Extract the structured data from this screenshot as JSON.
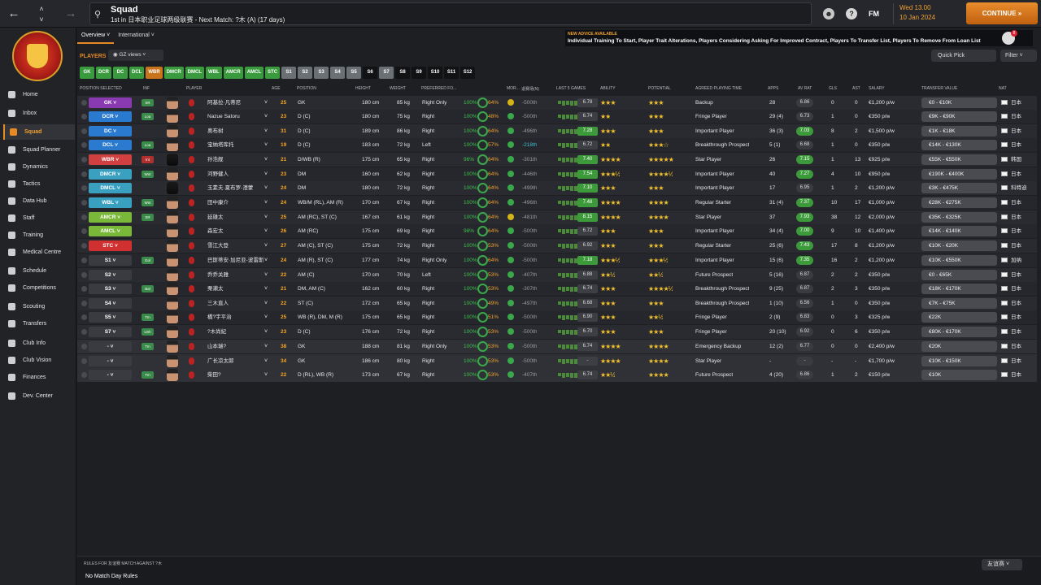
{
  "topbar": {
    "title": "Squad",
    "subtitle": "1st in 日本职业足球两级联赛 - Next Match: ?木 (A) (17 days)",
    "fm": "FM",
    "date_line1": "Wed 13.00",
    "date_line2": "10 Jan 2024",
    "continue": "CONTINUE"
  },
  "sidebar": [
    {
      "label": "Home"
    },
    {
      "label": "Inbox"
    },
    {
      "label": "Squad"
    },
    {
      "label": "Squad Planner"
    },
    {
      "label": "Dynamics"
    },
    {
      "label": "Tactics"
    },
    {
      "label": "Data Hub"
    },
    {
      "label": "Staff"
    },
    {
      "label": "Training"
    },
    {
      "label": "Medical Centre"
    },
    {
      "label": "Schedule"
    },
    {
      "label": "Competitions"
    },
    {
      "label": "Scouting"
    },
    {
      "label": "Transfers"
    },
    {
      "label": "Club Info"
    },
    {
      "label": "Club Vision"
    },
    {
      "label": "Finances"
    },
    {
      "label": "Dev. Center"
    }
  ],
  "tabs": [
    "Overview",
    "International"
  ],
  "advice": {
    "heading": "NEW ADVICE AVAILABLE",
    "text": "Individual Training To Start, Player Trait Alterations, Players Considering Asking For Improved Contract, Players To Transfer List, Players To Remove From Loan List",
    "count": "8"
  },
  "players_label": "PLAYERS",
  "views": "GZ views",
  "quick_pick": "Quick Pick",
  "filter": "Filter",
  "position_bar": [
    {
      "label": "GK",
      "color": "#3a9a3e"
    },
    {
      "label": "DCR",
      "color": "#3a9a3e"
    },
    {
      "label": "DC",
      "color": "#3a9a3e"
    },
    {
      "label": "DCL",
      "color": "#3a9a3e"
    },
    {
      "label": "WBR",
      "color": "#c8741c"
    },
    {
      "label": "DMCR",
      "color": "#3a9a3e"
    },
    {
      "label": "DMCL",
      "color": "#3a9a3e"
    },
    {
      "label": "WBL",
      "color": "#3a9a3e"
    },
    {
      "label": "AMCR",
      "color": "#3a9a3e"
    },
    {
      "label": "AMCL",
      "color": "#3a9a3e"
    },
    {
      "label": "STC",
      "color": "#3a9a3e"
    },
    {
      "label": "S1",
      "color": "#6b7075"
    },
    {
      "label": "S2",
      "color": "#6b7075"
    },
    {
      "label": "S3",
      "color": "#6b7075"
    },
    {
      "label": "S4",
      "color": "#6b7075"
    },
    {
      "label": "S5",
      "color": "#6b7075"
    },
    {
      "label": "S6",
      "color": "#111214"
    },
    {
      "label": "S7",
      "color": "#6b7075"
    },
    {
      "label": "S8",
      "color": "#111214"
    },
    {
      "label": "S9",
      "color": "#111214"
    },
    {
      "label": "S10",
      "color": "#111214"
    },
    {
      "label": "S11",
      "color": "#111214"
    },
    {
      "label": "S12",
      "color": "#111214"
    }
  ],
  "columns": {
    "pos_sel": "POSITION SELECTED",
    "inf": "INF",
    "player": "PLAYER",
    "age": "AGE",
    "position": "POSITION",
    "height": "HEIGHT",
    "weight": "WEIGHT",
    "pref_foot": "PREFERRED FO...",
    "mor": "MOR...",
    "cond": "退赛场(N)",
    "last5": "LAST 5 GAMES",
    "ability": "ABILITY",
    "potential": "POTENTIAL",
    "playing_time": "AGREED PLAYING TIME",
    "apps": "APPS",
    "av_rat": "AV RAT",
    "gls": "GLS",
    "ast": "AST",
    "salary": "SALARY",
    "tv": "TRANSFER VALUE",
    "nat": "NAT"
  },
  "players": [
    {
      "sel": "GK",
      "sel_color": "#8a3ab0",
      "inf": "SR",
      "inf_color": "#3a8a4a",
      "name": "阿基拉·凡蒂尼",
      "age": "25",
      "position": "GK",
      "height": "180 cm",
      "weight": "85 kg",
      "foot": "Right Only",
      "fit": "100%",
      "sharp": "64%",
      "mor": "y",
      "cond": "-500th",
      "rating": "6.78",
      "rating_g": false,
      "ability": "★★★",
      "potential": "★★★",
      "time": "Backup",
      "apps": "28",
      "avr": "6.86",
      "avr_g": false,
      "gls": "0",
      "ast": "0",
      "salary": "€1,200 p/w",
      "tv": "€0 - €10K",
      "nat": "日本"
    },
    {
      "sel": "DCR",
      "sel_color": "#2a7ad0",
      "inf": "Loa",
      "inf_color": "#3a8a4a",
      "name": "Nazue Satoru",
      "age": "23",
      "position": "D (C)",
      "height": "180 cm",
      "weight": "75 kg",
      "foot": "Right",
      "fit": "100%",
      "sharp": "48%",
      "mor": "g",
      "cond": "-500th",
      "rating": "6.74",
      "rating_g": false,
      "ability": "★★",
      "potential": "★★★",
      "time": "Fringe Player",
      "apps": "29 (4)",
      "avr": "6.73",
      "avr_g": false,
      "gls": "1",
      "ast": "0",
      "salary": "€350 p/w",
      "tv": "€9K - €90K",
      "nat": "日本"
    },
    {
      "sel": "DC",
      "sel_color": "#2a7ad0",
      "inf": "",
      "inf_color": "",
      "name": "奥布树",
      "age": "31",
      "position": "D (C)",
      "height": "189 cm",
      "weight": "86 kg",
      "foot": "Right",
      "fit": "100%",
      "sharp": "64%",
      "mor": "g",
      "cond": "-496th",
      "rating": "7.28",
      "rating_g": true,
      "ability": "★★★",
      "potential": "★★★",
      "time": "Important Player",
      "apps": "36 (3)",
      "avr": "7.03",
      "avr_g": true,
      "gls": "8",
      "ast": "2",
      "salary": "€1,500 p/w",
      "tv": "€1K - €18K",
      "nat": "日本"
    },
    {
      "sel": "DCL",
      "sel_color": "#2a7ad0",
      "inf": "Loa",
      "inf_color": "#3a8a4a",
      "name": "宝纳塔库托",
      "age": "19",
      "position": "D (C)",
      "height": "183 cm",
      "weight": "72 kg",
      "foot": "Left",
      "fit": "100%",
      "sharp": "57%",
      "mor": "g",
      "cond": "-218th",
      "rating": "6.72",
      "rating_g": false,
      "ability": "★★",
      "potential": "★★★☆",
      "time": "Breakthrough Prospect",
      "apps": "5 (1)",
      "avr": "6.68",
      "avr_g": false,
      "gls": "1",
      "ast": "0",
      "salary": "€350 p/w",
      "tv": "€14K - €130K",
      "nat": "日本"
    },
    {
      "sel": "WBR",
      "sel_color": "#d04040",
      "inf": "Int",
      "inf_color": "#b03030",
      "name": "孙浩舰",
      "age": "21",
      "position": "D/WB (R)",
      "height": "175 cm",
      "weight": "65 kg",
      "foot": "Right",
      "fit": "96%",
      "sharp": "64%",
      "mor": "g",
      "cond": "-301th",
      "rating": "7.40",
      "rating_g": true,
      "ability": "★★★★",
      "potential": "★★★★★",
      "time": "Star Player",
      "apps": "26",
      "avr": "7.15",
      "avr_g": true,
      "gls": "1",
      "ast": "13",
      "salary": "€925 p/w",
      "tv": "€55K - €550K",
      "nat": "韩国"
    },
    {
      "sel": "DMCR",
      "sel_color": "#3aa0c0",
      "inf": "Wnt",
      "inf_color": "#3a8a4a",
      "name": "河野健人",
      "age": "23",
      "position": "DM",
      "height": "160 cm",
      "weight": "62 kg",
      "foot": "Right",
      "fit": "100%",
      "sharp": "64%",
      "mor": "g",
      "cond": "-446th",
      "rating": "7.54",
      "rating_g": true,
      "ability": "★★★½",
      "potential": "★★★★½",
      "time": "Important Player",
      "apps": "40",
      "avr": "7.27",
      "avr_g": true,
      "gls": "4",
      "ast": "10",
      "salary": "€950 p/w",
      "tv": "€190K - €400K",
      "nat": "日本"
    },
    {
      "sel": "DMCL",
      "sel_color": "#3aa0c0",
      "inf": "",
      "inf_color": "",
      "name": "玉素夫·夏布罗-澄蒙",
      "age": "24",
      "position": "DM",
      "height": "180 cm",
      "weight": "72 kg",
      "foot": "Right",
      "fit": "100%",
      "sharp": "64%",
      "mor": "g",
      "cond": "-499th",
      "rating": "7.10",
      "rating_g": true,
      "ability": "★★★",
      "potential": "★★★",
      "time": "Important Player",
      "apps": "17",
      "avr": "6.95",
      "avr_g": false,
      "gls": "1",
      "ast": "2",
      "salary": "€1,200 p/w",
      "tv": "€3K - €475K",
      "nat": "科特迪"
    },
    {
      "sel": "WBL",
      "sel_color": "#3aa0c0",
      "inf": "Wnt",
      "inf_color": "#3a8a4a",
      "name": "田中康介",
      "age": "24",
      "position": "WB/M (RL), AM (R)",
      "height": "170 cm",
      "weight": "67 kg",
      "foot": "Right",
      "fit": "100%",
      "sharp": "64%",
      "mor": "g",
      "cond": "-496th",
      "rating": "7.48",
      "rating_g": true,
      "ability": "★★★★",
      "potential": "★★★★",
      "time": "Regular Starter",
      "apps": "31 (4)",
      "avr": "7.37",
      "avr_g": true,
      "gls": "10",
      "ast": "17",
      "salary": "€1,000 p/w",
      "tv": "€28K - €275K",
      "nat": "日本"
    },
    {
      "sel": "AMCR",
      "sel_color": "#7ab83a",
      "inf": "SR",
      "inf_color": "#3a8a4a",
      "name": "延雄太",
      "age": "25",
      "position": "AM (RC), ST (C)",
      "height": "167 cm",
      "weight": "61 kg",
      "foot": "Right",
      "fit": "100%",
      "sharp": "64%",
      "mor": "y",
      "cond": "-481th",
      "rating": "8.15",
      "rating_g": true,
      "ability": "★★★★",
      "potential": "★★★★",
      "time": "Star Player",
      "apps": "37",
      "avr": "7.93",
      "avr_g": true,
      "gls": "38",
      "ast": "12",
      "salary": "€2,000 p/w",
      "tv": "€35K - €325K",
      "nat": "日本"
    },
    {
      "sel": "AMCL",
      "sel_color": "#7ab83a",
      "inf": "",
      "inf_color": "",
      "name": "森宏太",
      "age": "26",
      "position": "AM (RC)",
      "height": "175 cm",
      "weight": "69 kg",
      "foot": "Right",
      "fit": "98%",
      "sharp": "64%",
      "mor": "g",
      "cond": "-500th",
      "rating": "6.72",
      "rating_g": false,
      "ability": "★★★",
      "potential": "★★★",
      "time": "Important Player",
      "apps": "34 (4)",
      "avr": "7.00",
      "avr_g": true,
      "gls": "9",
      "ast": "10",
      "salary": "€1,400 p/w",
      "tv": "€14K - €140K",
      "nat": "日本"
    },
    {
      "sel": "STC",
      "sel_color": "#d03030",
      "inf": "",
      "inf_color": "",
      "name": "雪江大登",
      "age": "27",
      "position": "AM (C), ST (C)",
      "height": "175 cm",
      "weight": "72 kg",
      "foot": "Right",
      "fit": "100%",
      "sharp": "53%",
      "mor": "g",
      "cond": "-500th",
      "rating": "6.92",
      "rating_g": false,
      "ability": "★★★",
      "potential": "★★★",
      "time": "Regular Starter",
      "apps": "25 (6)",
      "avr": "7.43",
      "avr_g": true,
      "gls": "17",
      "ast": "8",
      "salary": "€1,200 p/w",
      "tv": "€10K - €20K",
      "nat": "日本"
    },
    {
      "sel": "S1",
      "sel_color": "",
      "inf": "Gol",
      "inf_color": "#3a8a4a",
      "name": "巴斯蒂安·加尼亚-波雷斯",
      "age": "24",
      "position": "AM (R), ST (C)",
      "height": "177 cm",
      "weight": "74 kg",
      "foot": "Right Only",
      "fit": "100%",
      "sharp": "64%",
      "mor": "g",
      "cond": "-500th",
      "rating": "7.18",
      "rating_g": true,
      "ability": "★★★½",
      "potential": "★★★½",
      "time": "Important Player",
      "apps": "15 (6)",
      "avr": "7.35",
      "avr_g": true,
      "gls": "16",
      "ast": "2",
      "salary": "€1,200 p/w",
      "tv": "€10K - €550K",
      "nat": "加纳"
    },
    {
      "sel": "S2",
      "sel_color": "",
      "inf": "",
      "inf_color": "",
      "name": "乔乔关雅",
      "age": "22",
      "position": "AM (C)",
      "height": "170 cm",
      "weight": "70 kg",
      "foot": "Left",
      "fit": "100%",
      "sharp": "53%",
      "mor": "g",
      "cond": "-407th",
      "rating": "6.88",
      "rating_g": false,
      "ability": "★★½",
      "potential": "★★½",
      "time": "Future Prospect",
      "apps": "5 (16)",
      "avr": "6.87",
      "avr_g": false,
      "gls": "2",
      "ast": "2",
      "salary": "€350 p/w",
      "tv": "€0 - €65K",
      "nat": "日本"
    },
    {
      "sel": "S3",
      "sel_color": "",
      "inf": "Bal",
      "inf_color": "#3a8a4a",
      "name": "栗濑太",
      "age": "21",
      "position": "DM, AM (C)",
      "height": "162 cm",
      "weight": "60 kg",
      "foot": "Right",
      "fit": "100%",
      "sharp": "53%",
      "mor": "g",
      "cond": "-307th",
      "rating": "6.74",
      "rating_g": false,
      "ability": "★★★",
      "potential": "★★★★½",
      "time": "Breakthrough Prospect",
      "apps": "9 (25)",
      "avr": "6.87",
      "avr_g": false,
      "gls": "2",
      "ast": "3",
      "salary": "€350 p/w",
      "tv": "€18K - €170K",
      "nat": "日本"
    },
    {
      "sel": "S4",
      "sel_color": "",
      "inf": "",
      "inf_color": "",
      "name": "三木直人",
      "age": "22",
      "position": "ST (C)",
      "height": "172 cm",
      "weight": "65 kg",
      "foot": "Right",
      "fit": "100%",
      "sharp": "49%",
      "mor": "g",
      "cond": "-497th",
      "rating": "6.68",
      "rating_g": false,
      "ability": "★★★",
      "potential": "★★★",
      "time": "Breakthrough Prospect",
      "apps": "1 (10)",
      "avr": "6.56",
      "avr_g": false,
      "gls": "1",
      "ast": "0",
      "salary": "€350 p/w",
      "tv": "€7K - €75K",
      "nat": "日本"
    },
    {
      "sel": "S5",
      "sel_color": "",
      "inf": "Trn",
      "inf_color": "#3a8a4a",
      "name": "橋?宇平治",
      "age": "25",
      "position": "WB (R), DM, M (R)",
      "height": "175 cm",
      "weight": "65 kg",
      "foot": "Right",
      "fit": "100%",
      "sharp": "51%",
      "mor": "g",
      "cond": "-500th",
      "rating": "6.90",
      "rating_g": false,
      "ability": "★★★",
      "potential": "★★½",
      "time": "Fringe Player",
      "apps": "2 (9)",
      "avr": "6.83",
      "avr_g": false,
      "gls": "0",
      "ast": "3",
      "salary": "€325 p/w",
      "tv": "€22K",
      "nat": "日本"
    },
    {
      "sel": "S7",
      "sel_color": "",
      "inf": "Unh",
      "inf_color": "#3a8a4a",
      "name": "?木尚紀",
      "age": "23",
      "position": "D (C)",
      "height": "176 cm",
      "weight": "72 kg",
      "foot": "Right",
      "fit": "100%",
      "sharp": "53%",
      "mor": "g",
      "cond": "-500th",
      "rating": "6.70",
      "rating_g": false,
      "ability": "★★★",
      "potential": "★★★",
      "time": "Fringe Player",
      "apps": "20 (10)",
      "avr": "6.92",
      "avr_g": false,
      "gls": "0",
      "ast": "6",
      "salary": "€350 p/w",
      "tv": "€80K - €170K",
      "nat": "日本"
    },
    {
      "sel": "-",
      "sel_color": "",
      "inf": "Trn",
      "inf_color": "#3a8a4a",
      "name": "山本瑞?",
      "age": "38",
      "position": "GK",
      "height": "188 cm",
      "weight": "81 kg",
      "foot": "Right Only",
      "fit": "100%",
      "sharp": "53%",
      "mor": "g",
      "cond": "-500th",
      "rating": "6.74",
      "rating_g": false,
      "ability": "★★★★",
      "potential": "★★★★",
      "time": "Emergency Backup",
      "apps": "12 (2)",
      "avr": "6.77",
      "avr_g": false,
      "gls": "0",
      "ast": "0",
      "salary": "€2,400 p/w",
      "tv": "€20K",
      "nat": "日本"
    },
    {
      "sel": "-",
      "sel_color": "",
      "inf": "",
      "inf_color": "",
      "name": "广长凉太郎",
      "age": "34",
      "position": "GK",
      "height": "186 cm",
      "weight": "80 kg",
      "foot": "Right",
      "fit": "100%",
      "sharp": "53%",
      "mor": "g",
      "cond": "-500th",
      "rating": "-",
      "rating_g": false,
      "ability": "★★★★",
      "potential": "★★★★",
      "time": "Star Player",
      "apps": "-",
      "avr": "-",
      "avr_g": false,
      "gls": "-",
      "ast": "-",
      "salary": "€1,700 p/w",
      "tv": "€10K - €150K",
      "nat": "日本"
    },
    {
      "sel": "-",
      "sel_color": "",
      "inf": "Trn",
      "inf_color": "#3a8a4a",
      "name": "柴田?",
      "age": "22",
      "position": "D (RL), WB (R)",
      "height": "173 cm",
      "weight": "67 kg",
      "foot": "Right",
      "fit": "100%",
      "sharp": "53%",
      "mor": "g",
      "cond": "-407th",
      "rating": "6.74",
      "rating_g": false,
      "ability": "★★½",
      "potential": "★★★★",
      "time": "Future Prospect",
      "apps": "4 (20)",
      "avr": "6.86",
      "avr_g": false,
      "gls": "1",
      "ast": "2",
      "salary": "€150 p/w",
      "tv": "€10K",
      "nat": "日本"
    }
  ],
  "bottom": {
    "rules_title": "RULES FOR 友谊赛 MATCH AGAINST ?木",
    "rules_value": "No Match Day Rules",
    "comp": "友谊赛"
  }
}
